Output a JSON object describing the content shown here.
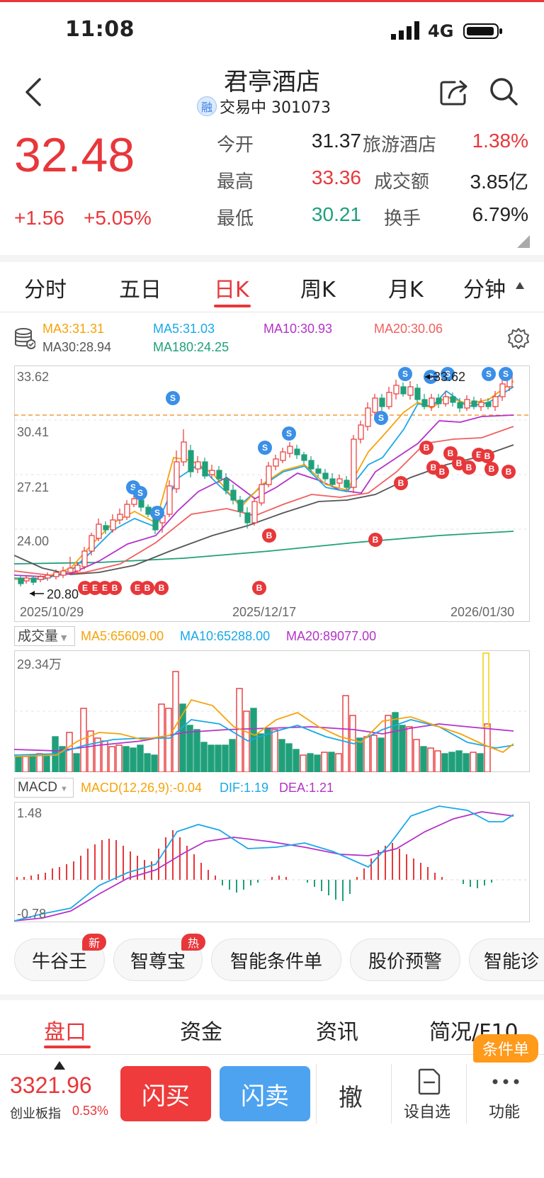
{
  "status": {
    "time": "11:08",
    "network": "4G"
  },
  "header": {
    "title": "君亭酒店",
    "badge": "融",
    "subtitle": "交易中 301073"
  },
  "quote": {
    "price": "32.48",
    "change": "+1.56",
    "change_pct": "+5.05%",
    "open_label": "今开",
    "open": "31.37",
    "high_label": "最高",
    "high": "33.36",
    "low_label": "最低",
    "low": "30.21",
    "sector_label": "旅游酒店",
    "sector_pct": "1.38%",
    "amount_label": "成交额",
    "amount": "3.85亿",
    "turnover_label": "换手",
    "turnover": "6.79%"
  },
  "tabs": [
    "分时",
    "五日",
    "日K",
    "周K",
    "月K",
    "分钟"
  ],
  "ma_legend": {
    "ma3": "MA3:31.31",
    "ma5": "MA5:31.03",
    "ma10": "MA10:30.93",
    "ma20": "MA20:30.06",
    "ma30": "MA30:28.94",
    "ma180": "MA180:24.25"
  },
  "kline": {
    "ylabels": [
      "33.62",
      "30.41",
      "27.21",
      "24.00",
      "20.80"
    ],
    "xlabels": [
      "2025/10/29",
      "2025/12/17",
      "2026/01/30"
    ],
    "max_marker": "33.62",
    "min_marker": "20.80"
  },
  "volume": {
    "selector": "成交量",
    "ma5": "MA5:65609.00",
    "ma10": "MA10:65288.00",
    "ma20": "MA20:89077.00",
    "ymax": "29.34万"
  },
  "macd": {
    "selector": "MACD",
    "macd": "MACD(12,26,9):-0.04",
    "dif": "DIF:1.19",
    "dea": "DEA:1.21",
    "ymax": "1.48",
    "ymin": "-0.78"
  },
  "chips": [
    {
      "label": "牛谷王",
      "badge": "新"
    },
    {
      "label": "智尊宝",
      "badge": "热"
    },
    {
      "label": "智能条件单"
    },
    {
      "label": "股价预警"
    },
    {
      "label": "智能诊"
    }
  ],
  "bottom_tabs": [
    "盘口",
    "资金",
    "资讯",
    "简况/F10"
  ],
  "bottom": {
    "index_value": "3321.96",
    "index_name": "创业板指",
    "index_pct": "0.53%",
    "buy": "闪买",
    "sell": "闪卖",
    "cancel": "撤",
    "watch": "设自选",
    "func": "功能",
    "cond_badge": "条件单"
  },
  "colors": {
    "up": "#e8373a",
    "down": "#20a07a",
    "accent": "#e8373a",
    "ma3": "#f5a30a",
    "ma5": "#1aa8e8",
    "ma10": "#b432c8",
    "ma20": "#f06060",
    "ma30": "#555555",
    "ma180": "#20a07a",
    "buy_btn": "#ef3b3b",
    "sell_btn": "#4da3f0"
  }
}
